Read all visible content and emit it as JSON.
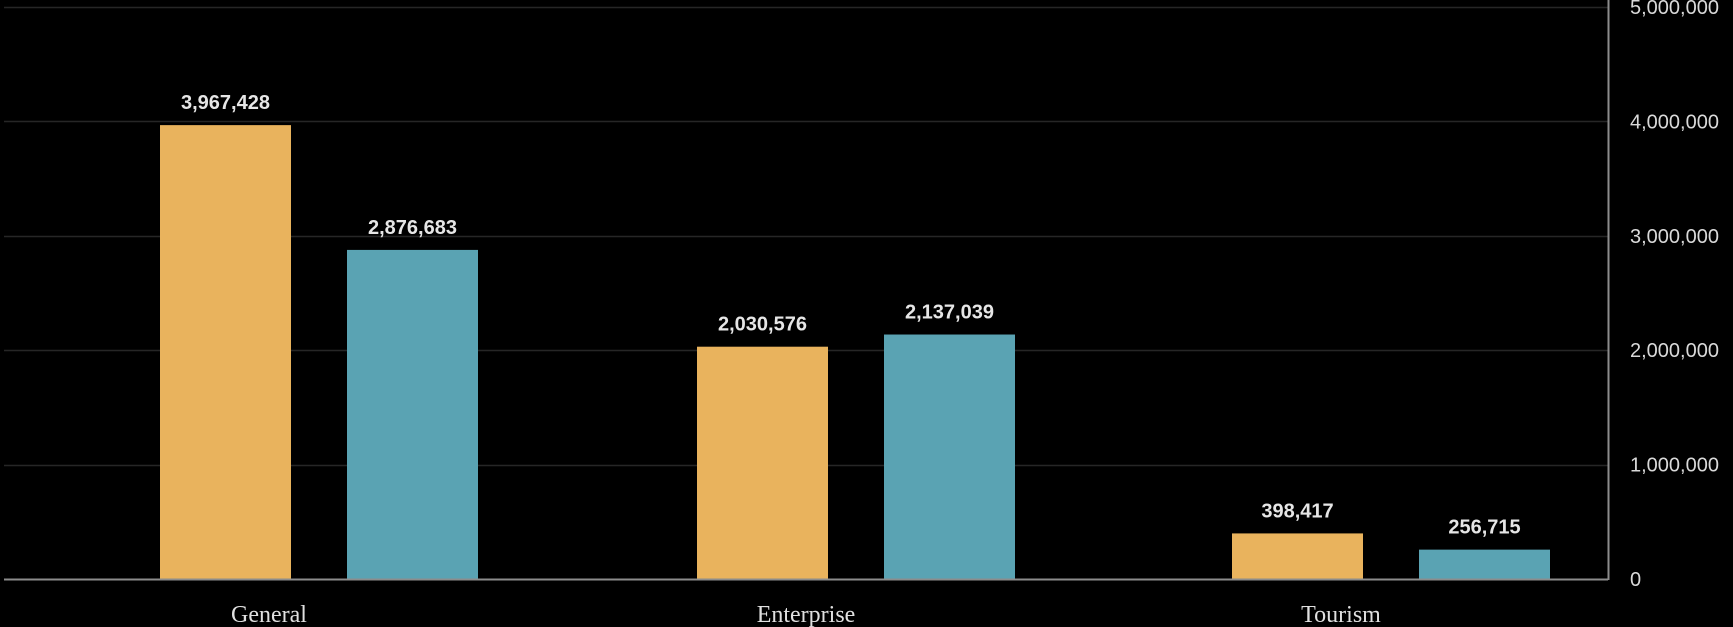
{
  "chart_data": {
    "type": "bar",
    "title": "",
    "xlabel": "",
    "ylabel": "",
    "categories": [
      "General",
      "Enterprise",
      "Tourism"
    ],
    "series": [
      {
        "values": [
          3967428,
          2030576,
          398417
        ],
        "color": "#E9B35D"
      },
      {
        "values": [
          2876683,
          2137039,
          256715
        ],
        "color": "#5AA3B3"
      }
    ],
    "value_labels": [
      [
        "3,967,428",
        "2,030,576",
        "398,417"
      ],
      [
        "2,876,683",
        "2,137,039",
        "256,715"
      ]
    ],
    "ylim": [
      0,
      5000000
    ],
    "y_ticks": [
      0,
      1000000,
      2000000,
      3000000,
      4000000,
      5000000
    ],
    "y_tick_labels": [
      "0",
      "1,000,000",
      "2,000,000",
      "3,000,000",
      "4,000,000",
      "5,000,000"
    ],
    "y_axis_position": "right",
    "grid": true,
    "legend": "none",
    "colors": {
      "background": "#000000",
      "grid": "#262626",
      "axis": "#8c8c8c"
    }
  }
}
